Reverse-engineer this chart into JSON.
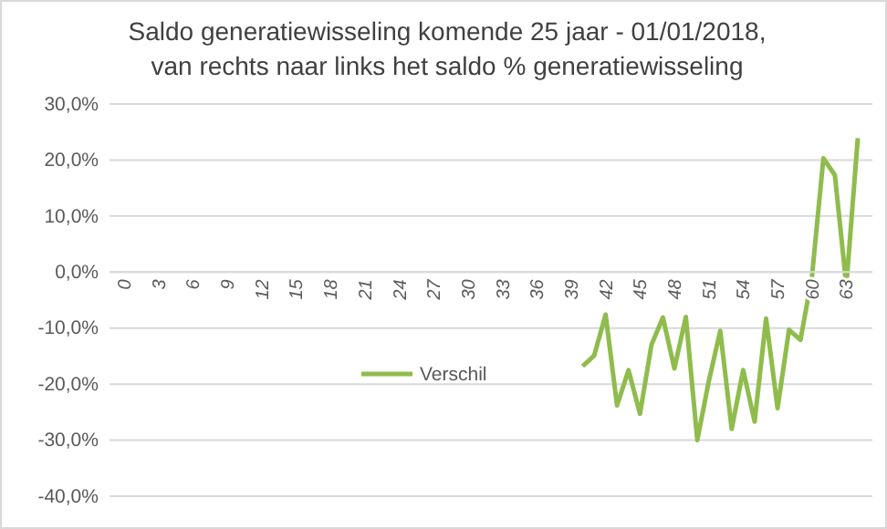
{
  "chart_data": {
    "type": "line",
    "title": "Saldo generatiewisseling komende 25 jaar - 01/01/2018,\nvan rechts naar links  het saldo % generatiewisseling",
    "categories": [
      "0",
      null,
      null,
      "3",
      null,
      null,
      "6",
      null,
      null,
      "9",
      null,
      null,
      "12",
      null,
      null,
      "15",
      null,
      null,
      "18",
      null,
      null,
      "21",
      null,
      null,
      "24",
      null,
      null,
      "27",
      null,
      null,
      "30",
      null,
      null,
      "33",
      null,
      null,
      "36",
      null,
      null,
      "39",
      null,
      null,
      "42",
      null,
      null,
      "45",
      null,
      null,
      "48",
      null,
      null,
      "51",
      null,
      null,
      "54",
      null,
      null,
      "57",
      null,
      null,
      "60",
      null,
      null,
      "63",
      null
    ],
    "series": [
      {
        "name": "Verschil",
        "color": "#8fbc4c",
        "values": [
          null,
          null,
          null,
          null,
          null,
          null,
          null,
          null,
          null,
          null,
          null,
          null,
          null,
          null,
          null,
          null,
          null,
          null,
          null,
          null,
          null,
          null,
          null,
          null,
          null,
          null,
          null,
          null,
          null,
          null,
          null,
          null,
          null,
          null,
          null,
          null,
          null,
          null,
          null,
          null,
          -16.8,
          -14.9,
          -7.6,
          -23.8,
          -17.5,
          -25.3,
          -13.0,
          -8.1,
          -17.2,
          -8.0,
          -30.0,
          -19.5,
          -10.5,
          -28.0,
          -17.5,
          -26.7,
          -8.3,
          -24.3,
          -10.3,
          -12.1,
          -0.8,
          20.3,
          17.3,
          -2.4,
          23.9
        ]
      }
    ],
    "ylim": [
      -40,
      30
    ],
    "yticks": [
      {
        "value": -40,
        "label": "-40,0%"
      },
      {
        "value": -30,
        "label": "-30,0%"
      },
      {
        "value": -20,
        "label": "-20,0%"
      },
      {
        "value": -10,
        "label": "-10,0%"
      },
      {
        "value": 0,
        "label": "0,0%"
      },
      {
        "value": 10,
        "label": "10,0%"
      },
      {
        "value": 20,
        "label": "20,0%"
      },
      {
        "value": 30,
        "label": "30,0%"
      }
    ],
    "grid": "y",
    "legend": "bottom",
    "line_style": "solid",
    "marker": "none"
  }
}
